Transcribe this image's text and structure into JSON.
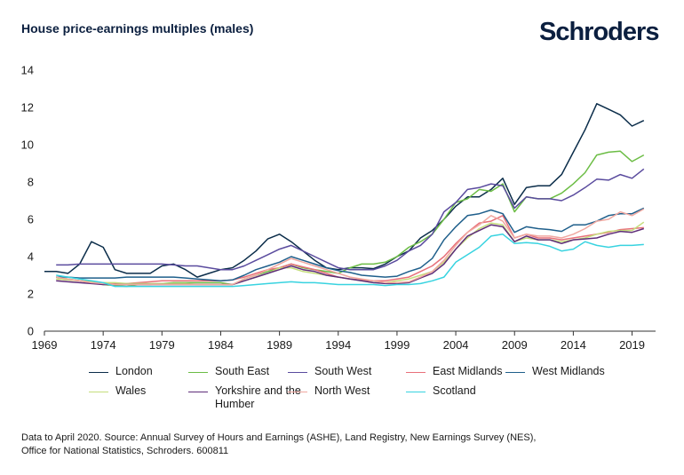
{
  "header": {
    "title": "House price-earnings multiples (males)",
    "brand": "Schroders"
  },
  "footer": {
    "source_line1": "Data to April 2020. Source: Annual Survey of Hours and Earnings (ASHE), Land Registry, New Earnings Survey (NES),",
    "source_line2": "Office for National Statistics, Schroders. 600811"
  },
  "chart_data": {
    "type": "line",
    "title": "House price-earnings multiples (males)",
    "xlabel": "",
    "ylabel": "",
    "xlim": [
      1969,
      2021
    ],
    "ylim": [
      0,
      14
    ],
    "x_ticks": [
      "1969",
      "1974",
      "1979",
      "1984",
      "1989",
      "1994",
      "1999",
      "2004",
      "2009",
      "2014",
      "2019"
    ],
    "y_ticks": [
      "0",
      "2",
      "4",
      "6",
      "8",
      "10",
      "12",
      "14"
    ],
    "grid": false,
    "legend_position": "bottom",
    "x": [
      1969,
      1970,
      1971,
      1972,
      1973,
      1974,
      1975,
      1976,
      1977,
      1978,
      1979,
      1980,
      1981,
      1982,
      1983,
      1984,
      1985,
      1986,
      1987,
      1988,
      1989,
      1990,
      1991,
      1992,
      1993,
      1994,
      1995,
      1996,
      1997,
      1998,
      1999,
      2000,
      2001,
      2002,
      2003,
      2004,
      2005,
      2006,
      2007,
      2008,
      2009,
      2010,
      2011,
      2012,
      2013,
      2014,
      2015,
      2016,
      2017,
      2018,
      2019,
      2020
    ],
    "series": [
      {
        "name": "London",
        "color": "#0b2d4a",
        "values": [
          3.2,
          3.2,
          3.1,
          3.6,
          4.8,
          4.5,
          3.3,
          3.1,
          3.1,
          3.1,
          3.5,
          3.6,
          3.3,
          2.9,
          3.1,
          3.3,
          3.4,
          3.8,
          4.3,
          4.95,
          5.2,
          4.8,
          4.3,
          3.8,
          3.4,
          3.3,
          3.4,
          3.4,
          3.35,
          3.6,
          4.0,
          4.3,
          5.0,
          5.4,
          6.0,
          6.7,
          7.2,
          7.2,
          7.6,
          8.2,
          6.8,
          7.7,
          7.8,
          7.8,
          8.4,
          9.6,
          10.8,
          12.2,
          11.9,
          11.6,
          11.0,
          11.3
        ]
      },
      {
        "name": "South East",
        "color": "#6cbd45",
        "values": [
          null,
          2.9,
          2.8,
          2.7,
          2.6,
          2.5,
          2.45,
          2.4,
          2.5,
          2.5,
          2.55,
          2.6,
          2.6,
          2.6,
          2.6,
          2.6,
          2.5,
          2.8,
          3.0,
          3.2,
          3.4,
          3.6,
          3.4,
          3.3,
          3.2,
          3.1,
          3.4,
          3.6,
          3.6,
          3.7,
          4.0,
          4.5,
          4.8,
          5.2,
          6.0,
          6.9,
          7.1,
          7.6,
          7.5,
          7.9,
          6.4,
          7.2,
          7.1,
          7.1,
          7.4,
          7.9,
          8.5,
          9.45,
          9.6,
          9.65,
          9.1,
          9.45
        ]
      },
      {
        "name": "South West",
        "color": "#5a4b9e",
        "values": [
          null,
          3.55,
          3.55,
          3.6,
          3.6,
          3.6,
          3.6,
          3.6,
          3.6,
          3.6,
          3.6,
          3.55,
          3.5,
          3.5,
          3.4,
          3.3,
          3.3,
          3.5,
          3.8,
          4.1,
          4.4,
          4.6,
          4.3,
          4.0,
          3.7,
          3.4,
          3.3,
          3.3,
          3.3,
          3.5,
          3.8,
          4.3,
          4.6,
          5.2,
          6.4,
          6.9,
          7.6,
          7.7,
          7.9,
          7.8,
          6.6,
          7.2,
          7.1,
          7.1,
          7.0,
          7.3,
          7.7,
          8.15,
          8.1,
          8.4,
          8.2,
          8.7
        ]
      },
      {
        "name": "East Midlands",
        "color": "#e8707a",
        "values": [
          null,
          2.8,
          2.75,
          2.7,
          2.65,
          2.6,
          2.55,
          2.55,
          2.6,
          2.65,
          2.7,
          2.7,
          2.7,
          2.7,
          2.7,
          2.7,
          2.75,
          2.9,
          3.1,
          3.3,
          3.4,
          3.6,
          3.45,
          3.3,
          3.1,
          2.9,
          2.8,
          2.75,
          2.7,
          2.7,
          2.8,
          2.9,
          3.2,
          3.5,
          4.0,
          4.7,
          5.3,
          5.8,
          5.9,
          6.2,
          5.0,
          5.2,
          5.0,
          5.0,
          4.9,
          5.0,
          5.1,
          5.2,
          5.3,
          5.45,
          5.5,
          5.55
        ]
      },
      {
        "name": "West Midlands",
        "color": "#1f5f8b",
        "values": [
          null,
          2.9,
          2.9,
          2.85,
          2.85,
          2.85,
          2.85,
          2.9,
          2.9,
          2.9,
          2.9,
          2.9,
          2.85,
          2.8,
          2.75,
          2.7,
          2.75,
          3.0,
          3.3,
          3.5,
          3.7,
          4.0,
          3.8,
          3.6,
          3.4,
          3.25,
          3.15,
          3.0,
          2.95,
          2.9,
          2.95,
          3.2,
          3.4,
          3.9,
          4.9,
          5.6,
          6.2,
          6.3,
          6.5,
          6.3,
          5.3,
          5.6,
          5.5,
          5.45,
          5.35,
          5.7,
          5.7,
          5.9,
          6.2,
          6.3,
          6.3,
          6.6
        ]
      },
      {
        "name": "Wales",
        "color": "#c5de7c",
        "values": [
          null,
          2.8,
          2.75,
          2.7,
          2.65,
          2.6,
          2.6,
          2.55,
          2.55,
          2.55,
          2.55,
          2.55,
          2.55,
          2.5,
          2.5,
          2.5,
          2.5,
          2.7,
          2.9,
          3.1,
          3.4,
          3.4,
          3.2,
          3.1,
          3.0,
          2.9,
          2.8,
          2.7,
          2.6,
          2.6,
          2.7,
          2.8,
          3.0,
          3.2,
          3.7,
          4.4,
          5.0,
          5.5,
          5.8,
          5.7,
          4.8,
          5.0,
          4.9,
          4.9,
          4.8,
          4.9,
          5.0,
          5.2,
          5.35,
          5.4,
          5.4,
          5.85
        ]
      },
      {
        "name": "Yorkshire and the Humber",
        "color": "#5e2d79",
        "values": [
          null,
          2.7,
          2.65,
          2.6,
          2.55,
          2.5,
          2.5,
          2.5,
          2.5,
          2.5,
          2.5,
          2.5,
          2.5,
          2.5,
          2.5,
          2.5,
          2.5,
          2.7,
          2.9,
          3.1,
          3.3,
          3.5,
          3.3,
          3.2,
          3.0,
          2.9,
          2.8,
          2.7,
          2.6,
          2.55,
          2.55,
          2.6,
          2.85,
          3.1,
          3.6,
          4.4,
          5.1,
          5.4,
          5.7,
          5.6,
          4.8,
          5.1,
          4.9,
          4.9,
          4.7,
          4.9,
          4.95,
          5.0,
          5.2,
          5.35,
          5.3,
          5.5
        ]
      },
      {
        "name": "North West",
        "color": "#f0a8a0",
        "values": [
          null,
          2.9,
          2.8,
          2.7,
          2.6,
          2.55,
          2.5,
          2.5,
          2.5,
          2.5,
          2.5,
          2.5,
          2.5,
          2.5,
          2.5,
          2.5,
          2.5,
          2.8,
          3.0,
          3.3,
          3.6,
          3.9,
          3.7,
          3.5,
          3.3,
          3.1,
          2.9,
          2.8,
          2.7,
          2.6,
          2.6,
          2.65,
          2.9,
          3.2,
          3.8,
          4.6,
          5.3,
          5.7,
          6.2,
          5.9,
          5.0,
          5.2,
          5.1,
          5.1,
          5.0,
          5.2,
          5.5,
          5.9,
          6.0,
          6.4,
          6.2,
          6.55
        ]
      },
      {
        "name": "Scotland",
        "color": "#38d3e0",
        "values": [
          null,
          3.0,
          2.9,
          2.8,
          2.7,
          2.6,
          2.4,
          2.4,
          2.4,
          2.4,
          2.4,
          2.4,
          2.4,
          2.4,
          2.4,
          2.4,
          2.4,
          2.45,
          2.5,
          2.55,
          2.6,
          2.65,
          2.6,
          2.6,
          2.55,
          2.5,
          2.5,
          2.5,
          2.5,
          2.45,
          2.5,
          2.5,
          2.55,
          2.7,
          2.9,
          3.7,
          4.1,
          4.5,
          5.1,
          5.2,
          4.7,
          4.75,
          4.7,
          4.55,
          4.3,
          4.4,
          4.8,
          4.6,
          4.5,
          4.6,
          4.6,
          4.65
        ]
      }
    ]
  }
}
